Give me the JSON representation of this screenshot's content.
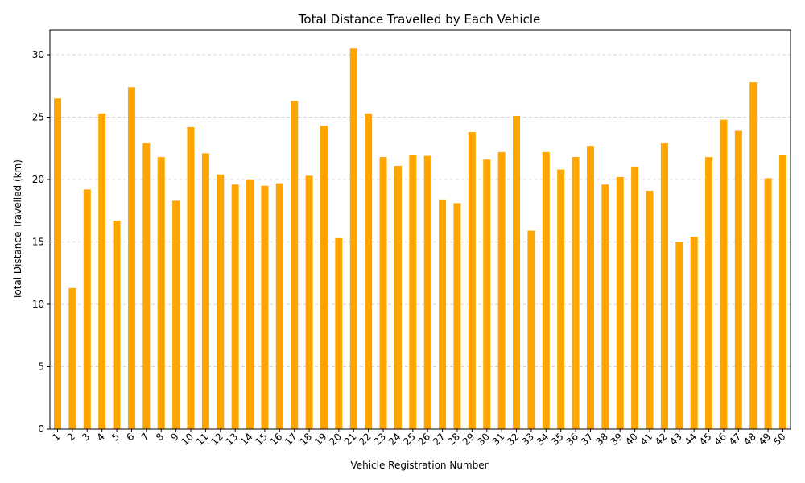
{
  "chart_data": {
    "type": "bar",
    "title": "Total Distance Travelled by Each Vehicle",
    "xlabel": "Vehicle Registration Number",
    "ylabel": "Total Distance Travelled (km)",
    "ylim": [
      0,
      32
    ],
    "yticks": [
      0,
      5,
      10,
      15,
      20,
      25,
      30
    ],
    "grid": "y-dashed",
    "bar_color": "#ffa500",
    "categories": [
      "1",
      "2",
      "3",
      "4",
      "5",
      "6",
      "7",
      "8",
      "9",
      "10",
      "11",
      "12",
      "13",
      "14",
      "15",
      "16",
      "17",
      "18",
      "19",
      "20",
      "21",
      "22",
      "23",
      "24",
      "25",
      "26",
      "27",
      "28",
      "29",
      "30",
      "31",
      "32",
      "33",
      "34",
      "35",
      "36",
      "37",
      "38",
      "39",
      "40",
      "41",
      "42",
      "43",
      "44",
      "45",
      "46",
      "47",
      "48",
      "49",
      "50"
    ],
    "values": [
      26.5,
      11.3,
      19.2,
      25.3,
      16.7,
      27.4,
      22.9,
      21.8,
      18.3,
      24.2,
      22.1,
      20.4,
      19.6,
      20.0,
      19.5,
      19.7,
      26.3,
      20.3,
      24.3,
      15.3,
      30.5,
      25.3,
      21.8,
      21.1,
      22.0,
      21.9,
      18.4,
      18.1,
      23.8,
      21.6,
      22.2,
      25.1,
      15.9,
      22.2,
      20.8,
      21.8,
      22.7,
      19.6,
      20.2,
      21.0,
      19.1,
      22.9,
      15.0,
      15.4,
      21.8,
      24.8,
      23.9,
      27.8,
      20.1,
      22.0
    ]
  }
}
